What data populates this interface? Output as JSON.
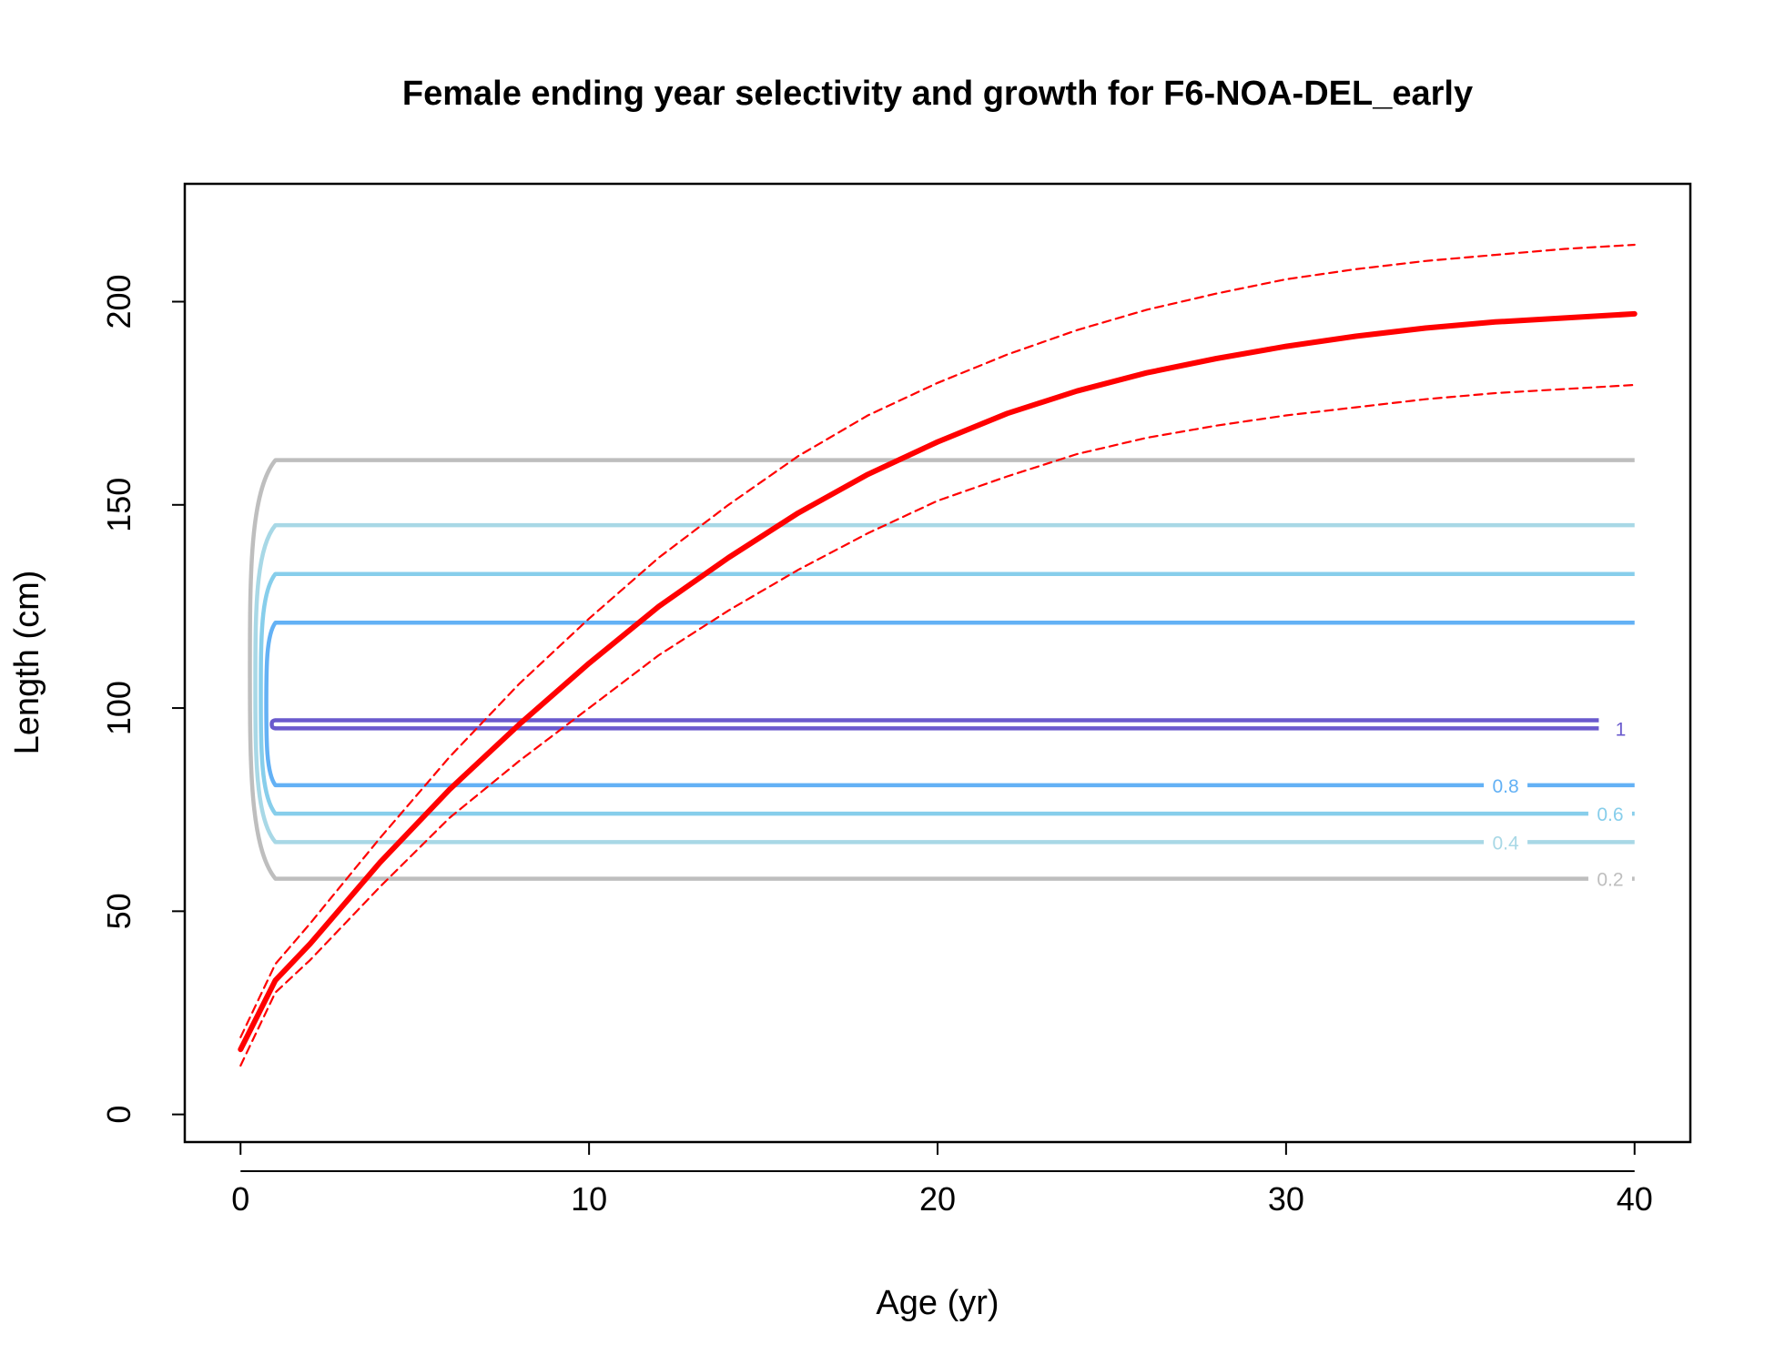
{
  "chart_data": {
    "type": "line",
    "title": "Female ending year selectivity and growth for F6-NOA-DEL_early",
    "xlabel": "Age (yr)",
    "ylabel": "Length (cm)",
    "xlim": [
      -1.6,
      41.6
    ],
    "ylim": [
      -6.8,
      229
    ],
    "x_ticks": [
      0,
      10,
      20,
      30,
      40
    ],
    "y_ticks": [
      0,
      50,
      100,
      150,
      200
    ],
    "grid": false,
    "colors": {
      "growth": "#ff0000",
      "level_0.2": "#bebebe",
      "level_0.4": "#a8d8e6",
      "level_0.6": "#87ceeb",
      "level_0.8": "#63b1f5",
      "level_1": "#6a5acd"
    },
    "series": [
      {
        "kind": "mean",
        "x": [
          0,
          1,
          2,
          4,
          6,
          8,
          10,
          12,
          14,
          16,
          18,
          20,
          22,
          24,
          26,
          28,
          30,
          32,
          34,
          36,
          38,
          40
        ],
        "values": [
          16,
          33,
          42,
          62,
          80,
          96,
          111,
          125,
          137,
          148,
          157.5,
          165.5,
          172.5,
          178,
          182.5,
          186,
          189,
          191.5,
          193.5,
          195,
          196,
          197
        ]
      },
      {
        "kind": "upper",
        "x": [
          0,
          1,
          2,
          4,
          6,
          8,
          10,
          12,
          14,
          16,
          18,
          20,
          22,
          24,
          26,
          28,
          30,
          32,
          34,
          36,
          38,
          40
        ],
        "values": [
          19,
          37,
          47,
          68,
          88,
          106,
          122,
          137,
          150,
          162,
          172,
          180,
          187,
          193,
          198,
          202,
          205.5,
          208,
          210,
          211.5,
          213,
          214
        ]
      },
      {
        "kind": "lower",
        "x": [
          0,
          1,
          2,
          4,
          6,
          8,
          10,
          12,
          14,
          16,
          18,
          20,
          22,
          24,
          26,
          28,
          30,
          32,
          34,
          36,
          38,
          40
        ],
        "values": [
          12,
          30,
          38,
          56,
          73,
          87,
          100,
          113,
          124,
          134,
          143,
          151,
          157,
          162.5,
          166.5,
          169.5,
          172,
          174,
          176,
          177.5,
          178.5,
          179.5
        ]
      }
    ],
    "contours": [
      {
        "level": "0.2",
        "upper": 161,
        "lower": 58,
        "x_end": 40,
        "label_side": "lower",
        "label_x": 39.3
      },
      {
        "level": "0.4",
        "upper": 145,
        "lower": 67,
        "x_end": 40,
        "label_side": "lower",
        "label_x": 36.3
      },
      {
        "level": "0.6",
        "upper": 133,
        "lower": 74,
        "x_end": 40,
        "label_side": "lower",
        "label_x": 39.3
      },
      {
        "level": "0.8",
        "upper": 121,
        "lower": 81,
        "x_end": 40,
        "label_side": "lower",
        "label_x": 36.3
      },
      {
        "level": "1",
        "upper": 97,
        "lower": 95,
        "x_end": 40,
        "label_side": "lower",
        "label_x": 39.6
      }
    ]
  }
}
